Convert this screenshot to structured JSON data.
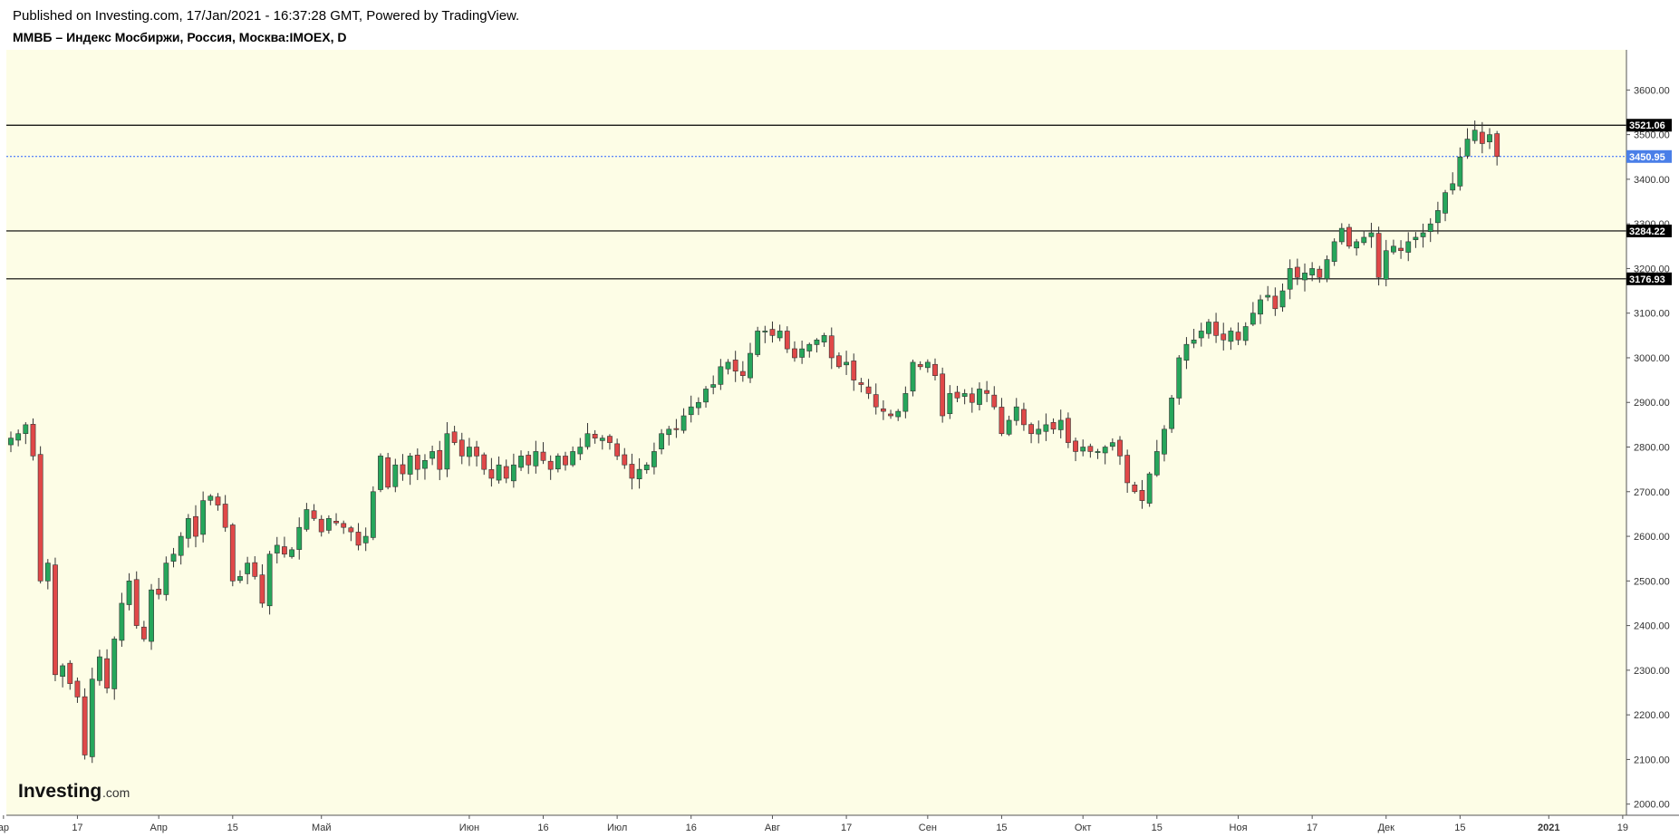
{
  "header": {
    "published": "Published on Investing.com, 17/Jan/2021 - 16:37:28 GMT, Powered by TradingView.",
    "symbol": "ММВБ – Индекс Мосбиржи, Россия, Москва:IMOEX, D"
  },
  "logo": {
    "text": "Investing",
    "suffix": ".com"
  },
  "colors": {
    "background": "#fdfde6",
    "up": "#26a65b",
    "down": "#e04848",
    "level_line": "#000000",
    "current_line": "#2962ff"
  },
  "chart_data": {
    "type": "candlestick",
    "ylim": [
      1975,
      3690
    ],
    "y_ticks": [
      2000,
      2100,
      2200,
      2300,
      2400,
      2500,
      2600,
      2700,
      2800,
      2900,
      3000,
      3100,
      3200,
      3300,
      3400,
      3500,
      3600
    ],
    "x_labels": [
      "ар",
      "17",
      "Апр",
      "15",
      "Май",
      "Июн",
      "16",
      "Июл",
      "16",
      "Авг",
      "17",
      "Сен",
      "15",
      "Окт",
      "15",
      "Ноя",
      "17",
      "Дек",
      "15",
      "2021",
      "19"
    ],
    "x_label_index": [
      -1,
      9,
      20,
      30,
      42,
      62,
      72,
      82,
      92,
      103,
      113,
      124,
      134,
      145,
      155,
      166,
      176,
      186,
      196,
      208,
      218
    ],
    "horizontal_levels": [
      {
        "value": 3521.06,
        "label": "3521.06"
      },
      {
        "value": 3284.22,
        "label": "3284.22"
      },
      {
        "value": 3176.93,
        "label": "3176.93"
      }
    ],
    "current_price": {
      "value": 3450.95,
      "label": "3450.95"
    },
    "closes": [
      2820,
      2830,
      2850,
      2780,
      2500,
      2540,
      2290,
      2310,
      2270,
      2240,
      2110,
      2280,
      2330,
      2260,
      2370,
      2450,
      2500,
      2400,
      2370,
      2480,
      2470,
      2540,
      2560,
      2600,
      2640,
      2600,
      2680,
      2690,
      2670,
      2620,
      2500,
      2510,
      2540,
      2510,
      2450,
      2560,
      2580,
      2560,
      2570,
      2620,
      2660,
      2640,
      2610,
      2640,
      2630,
      2620,
      2610,
      2580,
      2600,
      2700,
      2780,
      2710,
      2760,
      2740,
      2780,
      2750,
      2770,
      2790,
      2750,
      2830,
      2810,
      2780,
      2800,
      2780,
      2750,
      2730,
      2760,
      2730,
      2760,
      2780,
      2760,
      2790,
      2770,
      2750,
      2780,
      2760,
      2790,
      2800,
      2830,
      2820,
      2820,
      2810,
      2780,
      2760,
      2730,
      2750,
      2760,
      2790,
      2830,
      2840,
      2840,
      2870,
      2890,
      2900,
      2930,
      2940,
      2980,
      2990,
      2970,
      2960,
      3010,
      3060,
      3060,
      3050,
      3060,
      3020,
      3000,
      3020,
      3030,
      3040,
      3050,
      3000,
      2980,
      2990,
      2950,
      2940,
      2920,
      2890,
      2880,
      2870,
      2880,
      2920,
      2990,
      2980,
      2990,
      2960,
      2870,
      2920,
      2910,
      2920,
      2900,
      2930,
      2920,
      2890,
      2830,
      2860,
      2890,
      2850,
      2830,
      2840,
      2850,
      2840,
      2860,
      2810,
      2790,
      2800,
      2790,
      2790,
      2800,
      2810,
      2780,
      2720,
      2700,
      2680,
      2740,
      2790,
      2840,
      2910,
      3000,
      3030,
      3040,
      3060,
      3080,
      3050,
      3040,
      3060,
      3040,
      3070,
      3100,
      3130,
      3140,
      3110,
      3150,
      3200,
      3180,
      3190,
      3200,
      3180,
      3220,
      3260,
      3290,
      3250,
      3260,
      3270,
      3280,
      3180,
      3240,
      3250,
      3240,
      3260,
      3270,
      3280,
      3300,
      3330,
      3370,
      3390,
      3450,
      3490,
      3510,
      3480,
      3500,
      3450.95
    ]
  }
}
